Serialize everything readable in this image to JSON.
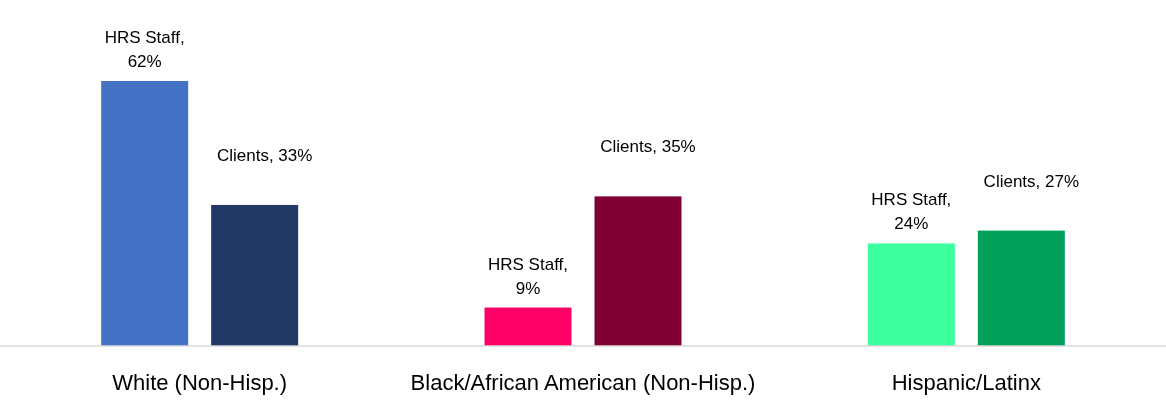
{
  "chart_data": {
    "type": "bar",
    "categories": [
      "White (Non-Hisp.)",
      "Black/African American (Non-Hisp.)",
      "Hispanic/Latinx"
    ],
    "series": [
      {
        "colors": [
          "#4472c4",
          "#ff0066",
          "#3cff9e"
        ],
        "values": [
          62,
          9,
          24
        ],
        "value_labels": [
          "HRS Staff, 62%",
          "HRS Staff, 9%",
          "HRS Staff, 24%"
        ]
      },
      {
        "colors": [
          "#203864",
          "#800033",
          "#00a05a"
        ],
        "values": [
          33,
          35,
          27
        ],
        "value_labels": [
          "Clients, 33%",
          "Clients, 35%",
          "Clients, 27%"
        ]
      }
    ]
  }
}
